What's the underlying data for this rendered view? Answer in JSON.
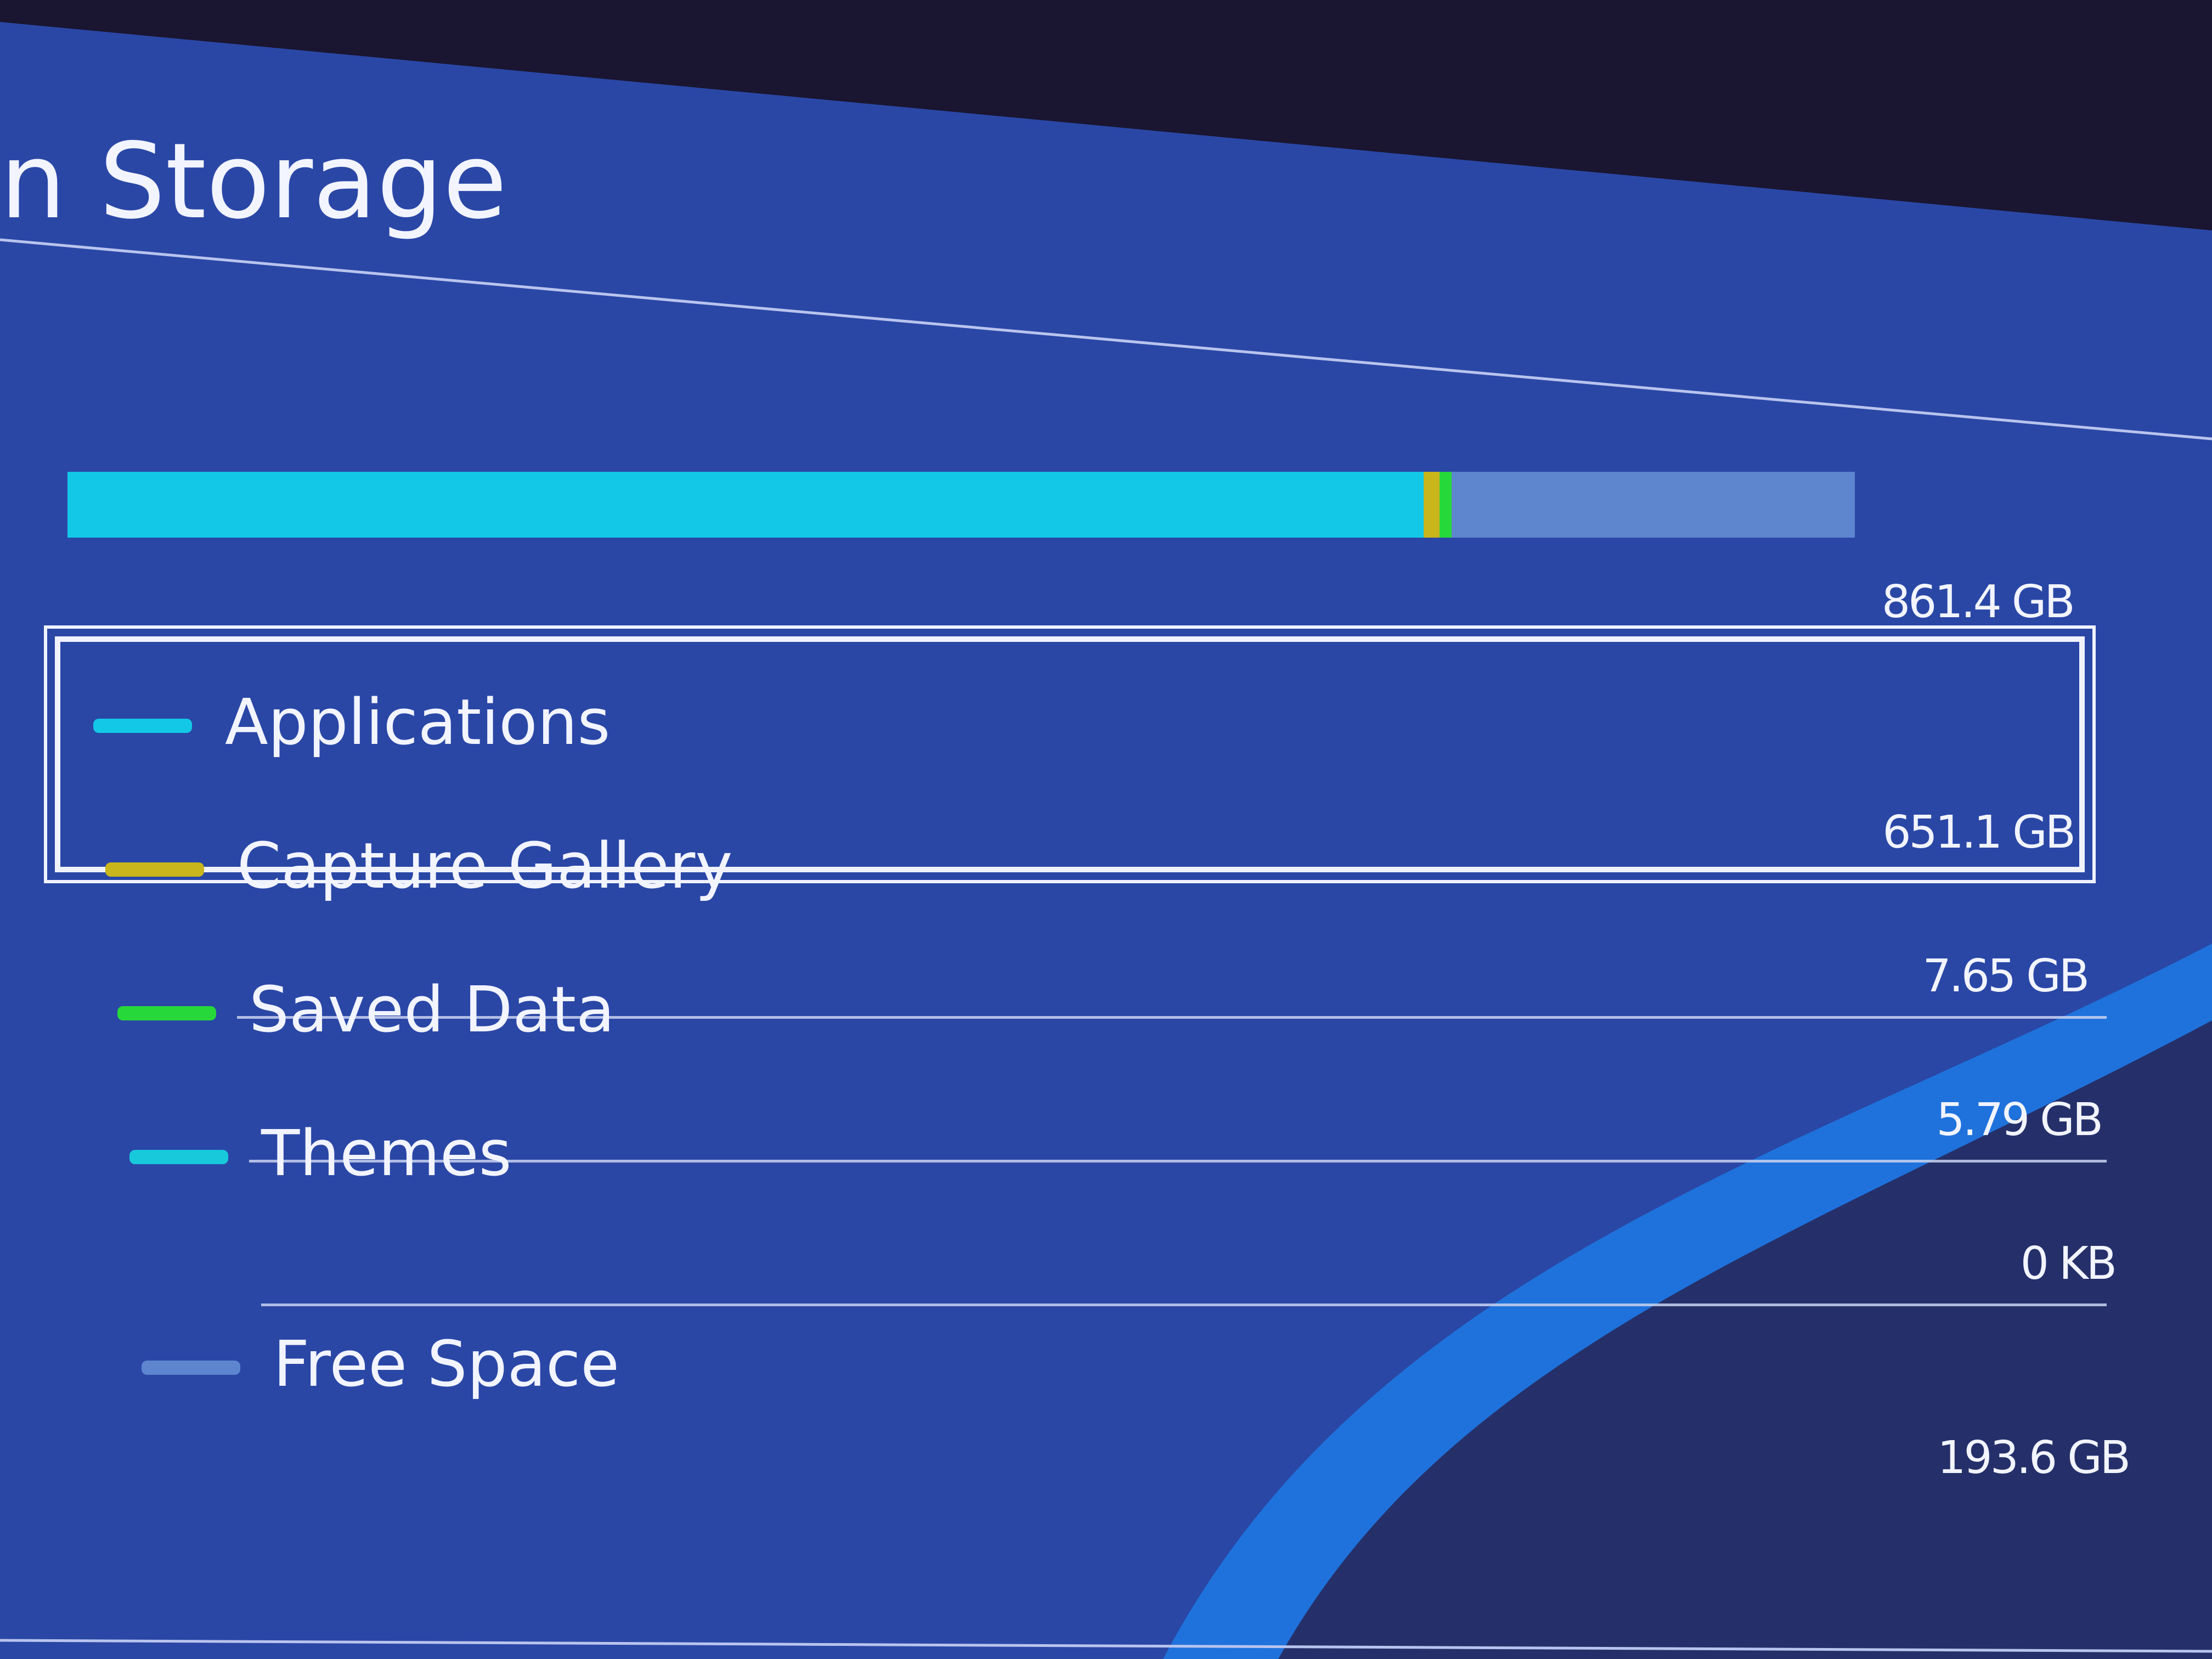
{
  "header": {
    "title": "n Storage"
  },
  "total": {
    "value": 861.4,
    "unit": "GB"
  },
  "items": [
    {
      "label": "Applications",
      "value": 651.1,
      "unit": "GB",
      "color": "#12c8e6",
      "selected": true
    },
    {
      "label": "Capture Gallery",
      "value": 7.65,
      "unit": "GB",
      "color": "#c9b51c"
    },
    {
      "label": "Saved Data",
      "value": 5.79,
      "unit": "GB",
      "color": "#27d83a"
    },
    {
      "label": "Themes",
      "value": 0,
      "unit": "KB",
      "color": "#18c9dc"
    },
    {
      "label": "Free Space",
      "value": 193.6,
      "unit": "GB",
      "color": "#5d86cf"
    }
  ]
}
